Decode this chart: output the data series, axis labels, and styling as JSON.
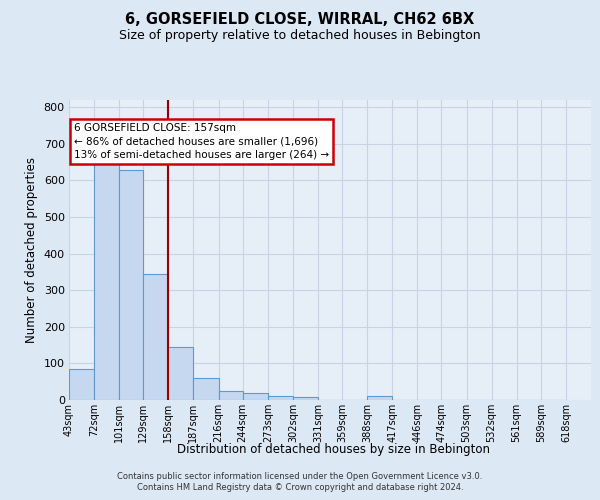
{
  "title": "6, GORSEFIELD CLOSE, WIRRAL, CH62 6BX",
  "subtitle": "Size of property relative to detached houses in Bebington",
  "xlabel": "Distribution of detached houses by size in Bebington",
  "ylabel": "Number of detached properties",
  "bin_edges": [
    43,
    72,
    101,
    129,
    158,
    187,
    216,
    244,
    273,
    302,
    331,
    359,
    388,
    417,
    446,
    474,
    503,
    532,
    561,
    589,
    618
  ],
  "bar_heights": [
    85,
    660,
    630,
    345,
    145,
    60,
    25,
    20,
    10,
    8,
    0,
    0,
    10,
    0,
    0,
    0,
    0,
    0,
    0,
    0
  ],
  "bar_color": "#c5d8f0",
  "bar_edge_color": "#5b9bd5",
  "vline_x": 158,
  "vline_color": "#990000",
  "annotation_title": "6 GORSEFIELD CLOSE: 157sqm",
  "annotation_line1": "← 86% of detached houses are smaller (1,696)",
  "annotation_line2": "13% of semi-detached houses are larger (264) →",
  "annotation_box_color": "#ffffff",
  "annotation_box_edge": "#cc0000",
  "ylim": [
    0,
    820
  ],
  "yticks": [
    0,
    100,
    200,
    300,
    400,
    500,
    600,
    700,
    800
  ],
  "background_color": "#dde8f5",
  "plot_bg_color": "#e6eef8",
  "grid_color": "#c8d4e4",
  "footer1": "Contains HM Land Registry data © Crown copyright and database right 2024.",
  "footer2": "Contains public sector information licensed under the Open Government Licence v3.0."
}
